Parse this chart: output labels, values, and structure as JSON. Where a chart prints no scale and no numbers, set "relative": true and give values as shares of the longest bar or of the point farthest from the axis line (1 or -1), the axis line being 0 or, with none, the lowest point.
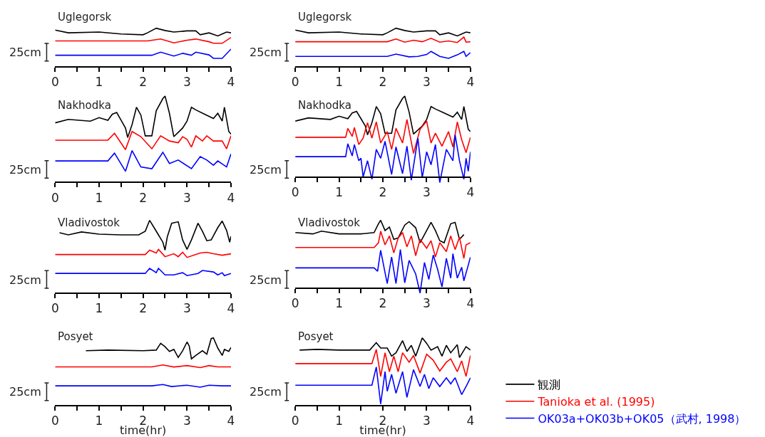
{
  "chart_data": [
    {
      "type": "line",
      "title": "Uglegorsk",
      "relative": true,
      "xlim": [
        0,
        4
      ],
      "xticks": [
        0,
        {
          "value": 0.5,
          "label": null
        },
        1,
        {
          "value": 1.5,
          "label": null
        },
        2,
        {
          "value": 2.5,
          "label": null
        },
        3,
        {
          "value": 3.5,
          "label": null
        },
        4
      ],
      "annotations": [
        "25cm"
      ],
      "series": [
        {
          "color": "#000000",
          "x": [
            0,
            0.3,
            1,
            1.5,
            2,
            2.1,
            2.3,
            2.5,
            2.7,
            3,
            3.2,
            3.3,
            3.5,
            3.7,
            3.8,
            3.9,
            4
          ],
          "values": [
            0.95,
            0.88,
            0.9,
            0.85,
            0.83,
            0.88,
            1,
            0.94,
            0.9,
            0.93,
            0.93,
            0.83,
            0.88,
            0.8,
            0.85,
            0.9,
            0.88
          ]
        },
        {
          "color": "#ff0000",
          "x": [
            0,
            2.1,
            2.4,
            2.7,
            3,
            3.2,
            3.5,
            3.6,
            3.8,
            4
          ],
          "values": [
            0.67,
            0.67,
            0.72,
            0.62,
            0.69,
            0.72,
            0.65,
            0.61,
            0.61,
            0.76
          ]
        },
        {
          "color": "#0000ff",
          "x": [
            0,
            2.2,
            2.4,
            2.7,
            2.9,
            3.1,
            3.2,
            3.5,
            3.6,
            3.8,
            4
          ],
          "values": [
            0.3,
            0.3,
            0.38,
            0.28,
            0.35,
            0.3,
            0.38,
            0.31,
            0.22,
            0.22,
            0.46
          ]
        }
      ]
    },
    {
      "type": "line",
      "title": "Uglegorsk",
      "relative": true,
      "xlim": [
        0,
        4
      ],
      "xticks": [
        0,
        {
          "value": 0.5,
          "label": null
        },
        1,
        {
          "value": 1.5,
          "label": null
        },
        2,
        {
          "value": 2.5,
          "label": null
        },
        3,
        {
          "value": 3.5,
          "label": null
        },
        4
      ],
      "annotations": [
        "25cm"
      ],
      "series": [
        {
          "color": "#000000",
          "x": [
            0,
            0.3,
            1,
            1.5,
            2,
            2.1,
            2.3,
            2.5,
            2.7,
            3,
            3.2,
            3.3,
            3.5,
            3.7,
            3.8,
            3.9,
            4
          ],
          "values": [
            0.95,
            0.88,
            0.9,
            0.85,
            0.83,
            0.88,
            1,
            0.94,
            0.9,
            0.93,
            0.93,
            0.83,
            0.88,
            0.8,
            0.85,
            0.9,
            0.88
          ]
        },
        {
          "color": "#ff0000",
          "x": [
            0,
            2.1,
            2.3,
            2.5,
            2.7,
            2.9,
            3.1,
            3.3,
            3.5,
            3.7,
            3.85,
            3.9,
            4
          ],
          "values": [
            0.65,
            0.65,
            0.72,
            0.64,
            0.69,
            0.65,
            0.74,
            0.64,
            0.67,
            0.63,
            0.77,
            0.64,
            0.65
          ]
        },
        {
          "color": "#0000ff",
          "x": [
            0,
            2.1,
            2.3,
            2.6,
            2.8,
            3,
            3.1,
            3.3,
            3.5,
            3.7,
            3.85,
            3.9,
            4
          ],
          "values": [
            0.27,
            0.27,
            0.33,
            0.26,
            0.27,
            0.32,
            0.4,
            0.27,
            0.22,
            0.31,
            0.4,
            0.27,
            0.37
          ]
        }
      ]
    },
    {
      "type": "line",
      "title": "Nakhodka",
      "relative": true,
      "xlim": [
        0,
        4
      ],
      "xticks": [
        0,
        {
          "value": 0.5,
          "label": null
        },
        1,
        {
          "value": 1.5,
          "label": null
        },
        2,
        {
          "value": 2.5,
          "label": null
        },
        3,
        {
          "value": 3.5,
          "label": null
        },
        4
      ],
      "annotations": [
        "25cm"
      ],
      "series": [
        {
          "color": "#000000",
          "x": [
            0,
            0.3,
            0.8,
            1,
            1.2,
            1.3,
            1.4,
            1.5,
            1.6,
            1.65,
            1.75,
            1.85,
            1.95,
            2.05,
            2.2,
            2.3,
            2.45,
            2.5,
            2.6,
            2.7,
            2.9,
            3,
            3.1,
            3.2,
            3.4,
            3.6,
            3.7,
            3.8,
            3.85,
            3.95,
            4
          ],
          "values": [
            0.69,
            0.73,
            0.71,
            0.75,
            0.72,
            0.79,
            0.81,
            0.72,
            0.63,
            0.52,
            0.67,
            0.87,
            0.78,
            0.54,
            0.54,
            0.83,
            0.97,
            1,
            0.8,
            0.53,
            0.63,
            0.71,
            0.87,
            0.84,
            0.79,
            0.74,
            0.8,
            0.71,
            0.87,
            0.59,
            0.56
          ]
        },
        {
          "color": "#ff0000",
          "x": [
            0,
            1.2,
            1.35,
            1.6,
            1.75,
            1.95,
            2.2,
            2.4,
            2.6,
            2.8,
            2.9,
            3,
            3.1,
            3.2,
            3.35,
            3.45,
            3.6,
            3.8,
            3.9,
            4
          ],
          "values": [
            0.49,
            0.49,
            0.57,
            0.38,
            0.59,
            0.53,
            0.39,
            0.54,
            0.48,
            0.46,
            0.53,
            0.5,
            0.41,
            0.54,
            0.48,
            0.54,
            0.48,
            0.48,
            0.39,
            0.54
          ]
        },
        {
          "color": "#0000ff",
          "x": [
            0,
            1.2,
            1.35,
            1.6,
            1.75,
            1.95,
            2.2,
            2.45,
            2.6,
            2.8,
            3.1,
            3.3,
            3.45,
            3.6,
            3.7,
            3.9,
            4
          ],
          "values": [
            0.25,
            0.25,
            0.34,
            0.13,
            0.37,
            0.18,
            0.16,
            0.35,
            0.22,
            0.26,
            0.16,
            0.3,
            0.26,
            0.2,
            0.25,
            0.18,
            0.33
          ]
        }
      ]
    },
    {
      "type": "line",
      "title": "Nakhodka",
      "relative": true,
      "xlim": [
        0,
        4
      ],
      "xticks": [
        0,
        {
          "value": 0.5,
          "label": null
        },
        1,
        {
          "value": 1.5,
          "label": null
        },
        2,
        {
          "value": 2.5,
          "label": null
        },
        3,
        {
          "value": 3.5,
          "label": null
        },
        4
      ],
      "annotations": [
        "25cm"
      ],
      "series": [
        {
          "color": "#000000",
          "x": [
            0,
            0.3,
            0.8,
            1,
            1.2,
            1.3,
            1.4,
            1.5,
            1.6,
            1.65,
            1.75,
            1.85,
            1.95,
            2.05,
            2.2,
            2.3,
            2.45,
            2.5,
            2.6,
            2.7,
            2.9,
            3,
            3.1,
            3.2,
            3.4,
            3.6,
            3.7,
            3.8,
            3.85,
            3.95,
            4
          ],
          "values": [
            0.69,
            0.73,
            0.71,
            0.75,
            0.72,
            0.79,
            0.81,
            0.72,
            0.63,
            0.52,
            0.67,
            0.87,
            0.78,
            0.54,
            0.54,
            0.83,
            0.97,
            1,
            0.8,
            0.53,
            0.63,
            0.71,
            0.87,
            0.84,
            0.79,
            0.74,
            0.8,
            0.71,
            0.87,
            0.59,
            0.56
          ]
        },
        {
          "color": "#ff0000",
          "x": [
            0,
            1.15,
            1.2,
            1.3,
            1.35,
            1.45,
            1.55,
            1.65,
            1.75,
            1.85,
            1.95,
            2.1,
            2.2,
            2.3,
            2.45,
            2.55,
            2.7,
            2.85,
            3,
            3.1,
            3.2,
            3.35,
            3.5,
            3.6,
            3.7,
            3.8,
            3.9,
            4
          ],
          "values": [
            0.49,
            0.49,
            0.6,
            0.5,
            0.61,
            0.4,
            0.48,
            0.67,
            0.48,
            0.68,
            0.42,
            0.56,
            0.34,
            0.6,
            0.42,
            0.71,
            0.29,
            0.59,
            0.69,
            0.42,
            0.54,
            0.38,
            0.56,
            0.37,
            0.68,
            0.46,
            0.3,
            0.49
          ]
        },
        {
          "color": "#0000ff",
          "x": [
            0,
            1.15,
            1.2,
            1.3,
            1.35,
            1.45,
            1.5,
            1.55,
            1.65,
            1.75,
            1.85,
            1.95,
            2.05,
            2.2,
            2.3,
            2.45,
            2.55,
            2.65,
            2.8,
            2.9,
            3,
            3.1,
            3.2,
            3.3,
            3.45,
            3.6,
            3.65,
            3.75,
            3.85,
            3.9,
            3.95,
            4
          ],
          "values": [
            0.25,
            0.25,
            0.41,
            0.26,
            0.4,
            0.2,
            0.23,
            0,
            0.2,
            -0.03,
            0.34,
            0.23,
            0.44,
            0.03,
            0.37,
            0.04,
            0.38,
            -0.04,
            0.48,
            -0.01,
            0.31,
            0.15,
            0.4,
            -0.07,
            0.34,
            0.2,
            0.52,
            0.2,
            -0.03,
            0.23,
            0.07,
            0.31
          ]
        }
      ]
    },
    {
      "type": "line",
      "title": "Vladivostok",
      "relative": true,
      "xlim": [
        0,
        4
      ],
      "xticks": [
        0,
        {
          "value": 0.5,
          "label": null
        },
        1,
        {
          "value": 1.5,
          "label": null
        },
        2,
        {
          "value": 2.5,
          "label": null
        },
        3,
        {
          "value": 3.5,
          "label": null
        },
        4
      ],
      "annotations": [
        "25cm"
      ],
      "series": [
        {
          "color": "#000000",
          "x": [
            0.1,
            0.3,
            0.6,
            1,
            1.5,
            1.9,
            2.05,
            2.15,
            2.25,
            2.35,
            2.45,
            2.5,
            2.55,
            2.65,
            2.8,
            2.9,
            3,
            3.1,
            3.25,
            3.35,
            3.45,
            3.55,
            3.7,
            3.8,
            3.9,
            3.97,
            4
          ],
          "values": [
            0.83,
            0.8,
            0.84,
            0.81,
            0.8,
            0.8,
            0.85,
            1,
            0.9,
            0.8,
            0.7,
            0.59,
            0.77,
            0.96,
            0.98,
            0.73,
            0.6,
            0.73,
            0.96,
            0.85,
            0.72,
            0.73,
            0.9,
            0.99,
            0.86,
            0.7,
            0.78
          ]
        },
        {
          "color": "#ff0000",
          "x": [
            0,
            2.05,
            2.15,
            2.3,
            2.35,
            2.5,
            2.7,
            2.8,
            2.9,
            3,
            3.3,
            3.45,
            3.6,
            3.8,
            4
          ],
          "values": [
            0.53,
            0.53,
            0.59,
            0.55,
            0.6,
            0.5,
            0.54,
            0.5,
            0.56,
            0.49,
            0.55,
            0.56,
            0.54,
            0.52,
            0.54
          ]
        },
        {
          "color": "#0000ff",
          "x": [
            0,
            2.05,
            2.15,
            2.3,
            2.35,
            2.5,
            2.7,
            2.9,
            3,
            3.25,
            3.35,
            3.6,
            3.7,
            3.8,
            3.85,
            4
          ],
          "values": [
            0.27,
            0.27,
            0.34,
            0.28,
            0.34,
            0.25,
            0.25,
            0.28,
            0.24,
            0.27,
            0.31,
            0.29,
            0.25,
            0.28,
            0.24,
            0.27
          ]
        }
      ]
    },
    {
      "type": "line",
      "title": "Vladivostok",
      "relative": true,
      "xlim": [
        0,
        4
      ],
      "xticks": [
        0,
        {
          "value": 0.5,
          "label": null
        },
        1,
        {
          "value": 1.5,
          "label": null
        },
        2,
        {
          "value": 2.5,
          "label": null
        },
        3,
        {
          "value": 3.5,
          "label": null
        },
        4
      ],
      "annotations": [
        "25cm"
      ],
      "series": [
        {
          "color": "#000000",
          "x": [
            0,
            0.4,
            0.6,
            1,
            1.5,
            1.8,
            1.9,
            1.95,
            2.05,
            2.15,
            2.25,
            2.35,
            2.5,
            2.6,
            2.75,
            2.85,
            3,
            3.1,
            3.2,
            3.3,
            3.4,
            3.55,
            3.65,
            3.75,
            3.85
          ],
          "values": [
            0.82,
            0.8,
            0.84,
            0.8,
            0.8,
            0.82,
            0.95,
            1,
            0.85,
            0.9,
            0.72,
            0.74,
            0.93,
            0.98,
            0.89,
            0.67,
            0.85,
            0.97,
            0.85,
            0.7,
            0.67,
            0.95,
            0.97,
            0.72,
            0.79
          ]
        },
        {
          "color": "#ff0000",
          "x": [
            0,
            1.8,
            1.9,
            1.95,
            2.05,
            2.15,
            2.25,
            2.35,
            2.45,
            2.55,
            2.65,
            2.75,
            2.85,
            3,
            3.1,
            3.2,
            3.3,
            3.45,
            3.55,
            3.65,
            3.75,
            3.85,
            3.9,
            4
          ],
          "values": [
            0.6,
            0.6,
            0.67,
            0.84,
            0.64,
            0.77,
            0.52,
            0.74,
            0.82,
            0.61,
            0.77,
            0.48,
            0.72,
            0.59,
            0.7,
            0.46,
            0.67,
            0.54,
            0.77,
            0.57,
            0.75,
            0.44,
            0.64,
            0.67
          ]
        },
        {
          "color": "#0000ff",
          "x": [
            0,
            1.8,
            1.88,
            1.95,
            2.05,
            2.1,
            2.2,
            2.3,
            2.4,
            2.5,
            2.6,
            2.75,
            2.85,
            2.95,
            3.05,
            3.15,
            3.25,
            3.35,
            3.45,
            3.55,
            3.6,
            3.7,
            3.8,
            3.85,
            3.95,
            4
          ],
          "values": [
            0.3,
            0.3,
            0.25,
            0.56,
            0.23,
            0.07,
            0.46,
            0.07,
            0.57,
            0.08,
            0.41,
            0.21,
            -0.07,
            0.38,
            0.13,
            0.49,
            0.28,
            0.02,
            0.44,
            0.15,
            0.51,
            0.15,
            0.31,
            0.11,
            0.34,
            0.46
          ]
        }
      ]
    },
    {
      "type": "line",
      "title": "Posyet",
      "xlabel": "time(hr)",
      "relative": true,
      "xlim": [
        0,
        4
      ],
      "xticks": [
        0,
        {
          "value": 0.5,
          "label": null
        },
        1,
        {
          "value": 1.5,
          "label": null
        },
        2,
        {
          "value": 2.5,
          "label": null
        },
        3,
        {
          "value": 3.5,
          "label": null
        },
        4
      ],
      "annotations": [
        "25cm"
      ],
      "series": [
        {
          "color": "#000000",
          "x": [
            0.7,
            1.2,
            2,
            2.3,
            2.4,
            2.5,
            2.6,
            2.7,
            2.8,
            2.9,
            3,
            3.05,
            3.1,
            3.2,
            3.35,
            3.45,
            3.55,
            3.6,
            3.7,
            3.8,
            3.85,
            3.95,
            4
          ],
          "values": [
            0.81,
            0.82,
            0.81,
            0.82,
            0.92,
            0.87,
            0.8,
            0.83,
            0.71,
            0.81,
            0.94,
            0.88,
            0.69,
            0.74,
            0.81,
            0.76,
            0.99,
            1,
            0.85,
            0.74,
            0.83,
            0.8,
            0.86
          ]
        },
        {
          "color": "#ff0000",
          "x": [
            0,
            2.2,
            2.45,
            2.7,
            3,
            3.3,
            3.5,
            3.7,
            4
          ],
          "values": [
            0.57,
            0.57,
            0.6,
            0.57,
            0.59,
            0.56,
            0.59,
            0.57,
            0.57
          ]
        },
        {
          "color": "#0000ff",
          "x": [
            0,
            2.2,
            2.45,
            2.65,
            3,
            3.3,
            3.5,
            3.8,
            4
          ],
          "values": [
            0.29,
            0.29,
            0.31,
            0.28,
            0.3,
            0.27,
            0.3,
            0.29,
            0.29
          ]
        }
      ]
    },
    {
      "type": "line",
      "title": "Posyet",
      "xlabel": "time(hr)",
      "relative": true,
      "legend": "bottom right",
      "xlim": [
        0,
        4
      ],
      "xticks": [
        0,
        {
          "value": 0.5,
          "label": null
        },
        1,
        {
          "value": 1.5,
          "label": null
        },
        2,
        {
          "value": 2.5,
          "label": null
        },
        3,
        {
          "value": 3.5,
          "label": null
        },
        4
      ],
      "annotations": [
        "25cm"
      ],
      "series": [
        {
          "name": "観測",
          "color": "#000000",
          "x": [
            0.1,
            0.5,
            1,
            1.7,
            1.85,
            1.95,
            2.1,
            2.2,
            2.3,
            2.45,
            2.55,
            2.65,
            2.75,
            2.9,
            3,
            3.1,
            3.25,
            3.35,
            3.45,
            3.55,
            3.7,
            3.75,
            3.9,
            4
          ],
          "values": [
            0.82,
            0.83,
            0.82,
            0.82,
            0.93,
            0.85,
            0.85,
            0.73,
            0.78,
            0.96,
            0.8,
            0.89,
            0.73,
            1,
            0.92,
            0.82,
            0.87,
            0.73,
            0.89,
            0.78,
            0.9,
            0.71,
            0.87,
            0.82
          ]
        },
        {
          "name": "Tanioka et al. (1995)",
          "color": "#ff0000",
          "x": [
            0,
            1.75,
            1.85,
            1.95,
            2.05,
            2.15,
            2.25,
            2.35,
            2.45,
            2.6,
            2.7,
            2.85,
            3,
            3.15,
            3.3,
            3.45,
            3.55,
            3.7,
            3.8,
            3.9,
            4
          ],
          "values": [
            0.62,
            0.62,
            0.83,
            0.43,
            0.78,
            0.5,
            0.73,
            0.5,
            0.78,
            0.64,
            0.74,
            0.48,
            0.76,
            0.67,
            0.51,
            0.64,
            0.69,
            0.5,
            0.66,
            0.43,
            0.74
          ]
        },
        {
          "name": "OK03a+OK03b+OK05（武村, 1998）",
          "color": "#0000ff",
          "x": [
            0,
            1.75,
            1.85,
            1.95,
            2.05,
            2.1,
            2.2,
            2.3,
            2.45,
            2.55,
            2.7,
            2.85,
            2.95,
            3.05,
            3.15,
            3.3,
            3.45,
            3.55,
            3.65,
            3.8,
            3.9,
            4
          ],
          "values": [
            0.3,
            0.3,
            0.57,
            0.02,
            0.5,
            0.21,
            0.46,
            0.18,
            0.5,
            0.12,
            0.53,
            0.28,
            0.46,
            0.25,
            0.41,
            0.28,
            0.41,
            0.32,
            0.41,
            0.16,
            0.28,
            0.41
          ]
        }
      ]
    }
  ]
}
